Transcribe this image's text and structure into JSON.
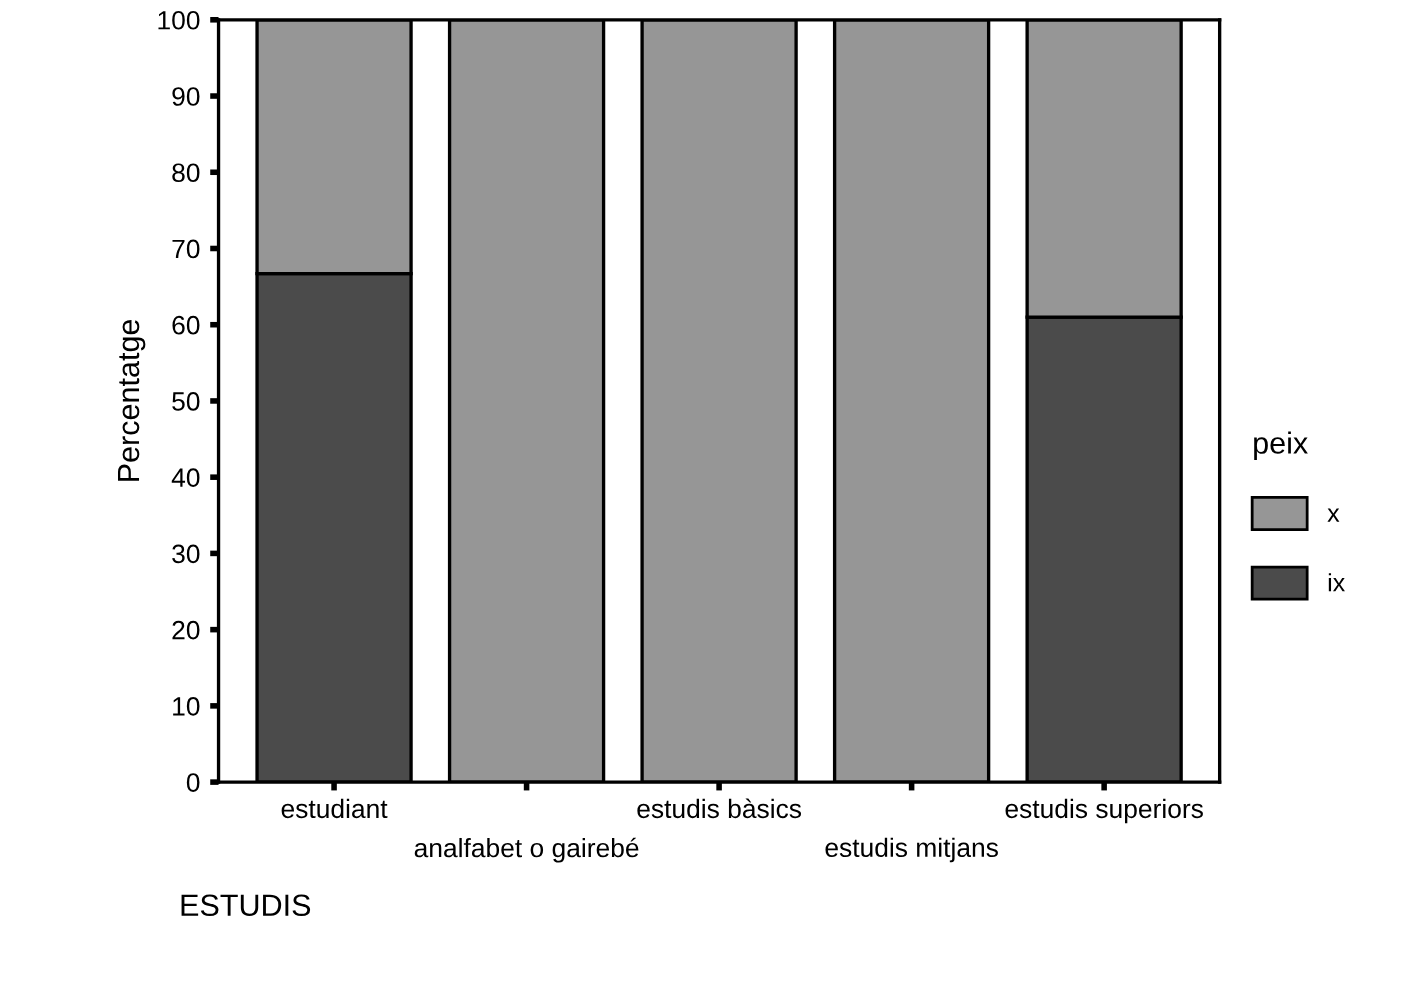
{
  "chart_data": {
    "type": "bar",
    "stacked": true,
    "xlabel": "ESTUDIS",
    "ylabel": "Percentatge",
    "legend_title": "peix",
    "legend": "right",
    "categories": [
      "estudiant",
      "analfabet o gairebé",
      "estudis bàsics",
      "estudis mitjans",
      "estudis superiors"
    ],
    "series": [
      {
        "name": "ix",
        "color": "#4b4b4b",
        "values": [
          66.7,
          0,
          0,
          0,
          61
        ]
      },
      {
        "name": "x",
        "color": "#969696",
        "values": [
          33.3,
          100,
          100,
          100,
          39
        ]
      }
    ],
    "ylim": [
      0,
      100
    ],
    "yticks": [
      0,
      10,
      20,
      30,
      40,
      50,
      60,
      70,
      80,
      90,
      100
    ],
    "grid": false
  }
}
